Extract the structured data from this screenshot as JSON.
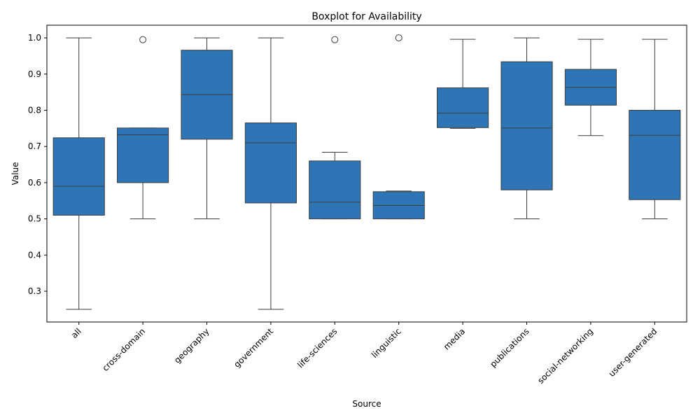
{
  "chart_data": {
    "type": "boxplot",
    "title": "Boxplot for Availability",
    "xlabel": "Source",
    "ylabel": "Value",
    "ylim": [
      0.215,
      1.035
    ],
    "yticks": [
      0.3,
      0.4,
      0.5,
      0.6,
      0.7,
      0.8,
      0.9,
      1.0
    ],
    "ytick_labels": [
      "0.3",
      "0.4",
      "0.5",
      "0.6",
      "0.7",
      "0.8",
      "0.9",
      "1.0"
    ],
    "grid": false,
    "box_color": "#2e75b6",
    "line_color": "#3d3d3d",
    "categories": [
      "all",
      "cross-domain",
      "geography",
      "government",
      "life-sciences",
      "linguistic",
      "media",
      "publications",
      "social-networking",
      "user-generated"
    ],
    "boxes": [
      {
        "whisker_low": 0.25,
        "q1": 0.51,
        "median": 0.59,
        "q3": 0.724,
        "whisker_high": 1.0,
        "outliers": []
      },
      {
        "whisker_low": 0.5,
        "q1": 0.6,
        "median": 0.732,
        "q3": 0.751,
        "whisker_high": 0.751,
        "outliers": [
          0.995
        ]
      },
      {
        "whisker_low": 0.5,
        "q1": 0.72,
        "median": 0.843,
        "q3": 0.966,
        "whisker_high": 1.0,
        "outliers": []
      },
      {
        "whisker_low": 0.25,
        "q1": 0.544,
        "median": 0.71,
        "q3": 0.765,
        "whisker_high": 1.0,
        "outliers": []
      },
      {
        "whisker_low": 0.5,
        "q1": 0.5,
        "median": 0.546,
        "q3": 0.66,
        "whisker_high": 0.684,
        "outliers": [
          0.995
        ]
      },
      {
        "whisker_low": 0.5,
        "q1": 0.5,
        "median": 0.537,
        "q3": 0.575,
        "whisker_high": 0.577,
        "outliers": [
          1.0
        ]
      },
      {
        "whisker_low": 0.75,
        "q1": 0.752,
        "median": 0.792,
        "q3": 0.862,
        "whisker_high": 0.996,
        "outliers": []
      },
      {
        "whisker_low": 0.5,
        "q1": 0.58,
        "median": 0.751,
        "q3": 0.934,
        "whisker_high": 1.0,
        "outliers": []
      },
      {
        "whisker_low": 0.73,
        "q1": 0.814,
        "median": 0.863,
        "q3": 0.913,
        "whisker_high": 0.996,
        "outliers": []
      },
      {
        "whisker_low": 0.5,
        "q1": 0.553,
        "median": 0.731,
        "q3": 0.8,
        "whisker_high": 0.996,
        "outliers": []
      }
    ]
  }
}
